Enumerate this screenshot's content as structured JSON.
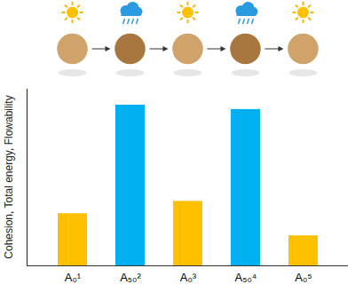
{
  "chart_data": {
    "type": "bar",
    "ylabel": "Cohesion, Total energy, Flowability",
    "categories": [
      "A₀¹",
      "A₅₀²",
      "A₀³",
      "A₅₀⁴",
      "A₀⁵"
    ],
    "values": [
      59,
      182,
      73,
      177,
      34
    ],
    "colors": [
      "#ffc000",
      "#00b0f0",
      "#ffc000",
      "#00b0f0",
      "#ffc000"
    ],
    "ylim": [
      0,
      200
    ],
    "tick_labels": "x",
    "grid": false
  }
}
